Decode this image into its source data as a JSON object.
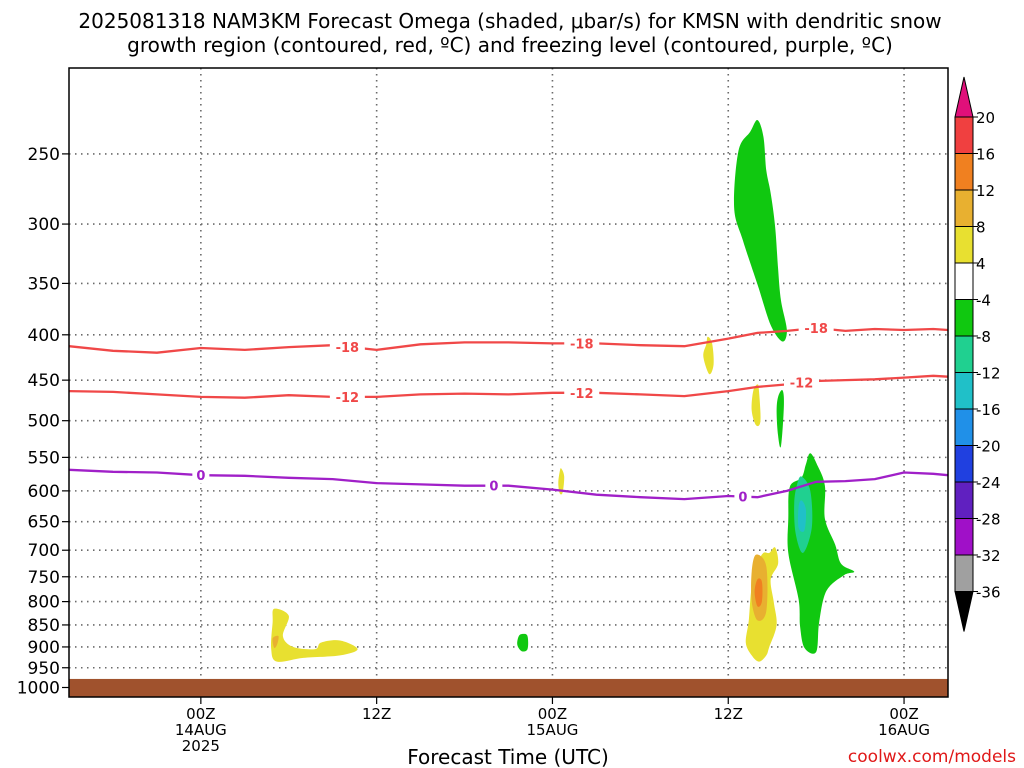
{
  "title": {
    "line1": "2025081318 NAM3KM Forecast Omega (shaded, μbar/s) for KMSN with dendritic snow",
    "line2": "growth region (contoured, red, ºC) and freezing level (contoured, purple, ºC)"
  },
  "credit": "coolwx.com/models",
  "chart_data": {
    "type": "heatmap",
    "title": "2025081318 NAM3KM Forecast Omega (shaded, μbar/s) for KMSN with dendritic snow growth region (contoured, red, ºC) and freezing level (contoured, purple, ºC)",
    "xlabel": "Forecast Time (UTC)",
    "ylabel": "",
    "x_range_hours": [
      -9,
      51
    ],
    "y_range_hPa": [
      1025,
      200
    ],
    "y_scale": "log-pressure",
    "grid": true,
    "x_ticks": [
      {
        "hour": 0,
        "line1": "00Z",
        "line2": "14AUG",
        "line3": "2025"
      },
      {
        "hour": 12,
        "line1": "12Z",
        "line2": "",
        "line3": ""
      },
      {
        "hour": 24,
        "line1": "00Z",
        "line2": "15AUG",
        "line3": ""
      },
      {
        "hour": 36,
        "line1": "12Z",
        "line2": "",
        "line3": ""
      },
      {
        "hour": 48,
        "line1": "00Z",
        "line2": "16AUG",
        "line3": ""
      }
    ],
    "y_ticks": [
      250,
      300,
      350,
      400,
      450,
      500,
      550,
      600,
      650,
      700,
      750,
      800,
      850,
      900,
      950,
      1000
    ],
    "surface_pressure_hPa": 978,
    "contours": [
      {
        "label": "-18",
        "color": "#f04848",
        "points": [
          [
            -9,
            412
          ],
          [
            -6,
            417
          ],
          [
            -3,
            419
          ],
          [
            0,
            414
          ],
          [
            3,
            416
          ],
          [
            6,
            413
          ],
          [
            9,
            411
          ],
          [
            12,
            416
          ],
          [
            15,
            410
          ],
          [
            18,
            408
          ],
          [
            21,
            408
          ],
          [
            24,
            409
          ],
          [
            27,
            409
          ],
          [
            30,
            411
          ],
          [
            33,
            412
          ],
          [
            36,
            404
          ],
          [
            38,
            398
          ],
          [
            40,
            396
          ],
          [
            42,
            393
          ],
          [
            44,
            396
          ],
          [
            46,
            394
          ],
          [
            48,
            395
          ],
          [
            50,
            394
          ],
          [
            51,
            395
          ]
        ],
        "labels_at_hours": [
          10,
          26,
          42
        ]
      },
      {
        "label": "-12",
        "color": "#f04848",
        "points": [
          [
            -9,
            463
          ],
          [
            -6,
            464
          ],
          [
            -3,
            467
          ],
          [
            0,
            470
          ],
          [
            3,
            471
          ],
          [
            6,
            468
          ],
          [
            9,
            470
          ],
          [
            12,
            470
          ],
          [
            15,
            467
          ],
          [
            18,
            466
          ],
          [
            21,
            467
          ],
          [
            24,
            465
          ],
          [
            27,
            465
          ],
          [
            30,
            467
          ],
          [
            33,
            469
          ],
          [
            36,
            463
          ],
          [
            38,
            458
          ],
          [
            40,
            455
          ],
          [
            42,
            451
          ],
          [
            44,
            450
          ],
          [
            46,
            449
          ],
          [
            48,
            447
          ],
          [
            50,
            445
          ],
          [
            51,
            446
          ]
        ],
        "labels_at_hours": [
          10,
          26,
          41
        ]
      },
      {
        "label": "0",
        "color": "#a020c8",
        "points": [
          [
            -9,
            568
          ],
          [
            -6,
            571
          ],
          [
            -3,
            572
          ],
          [
            0,
            576
          ],
          [
            3,
            577
          ],
          [
            6,
            580
          ],
          [
            9,
            582
          ],
          [
            12,
            588
          ],
          [
            15,
            590
          ],
          [
            18,
            592
          ],
          [
            21,
            592
          ],
          [
            24,
            598
          ],
          [
            27,
            606
          ],
          [
            30,
            610
          ],
          [
            33,
            613
          ],
          [
            36,
            608
          ],
          [
            38,
            610
          ],
          [
            40,
            600
          ],
          [
            42,
            586
          ],
          [
            44,
            585
          ],
          [
            46,
            582
          ],
          [
            48,
            572
          ],
          [
            50,
            574
          ],
          [
            51,
            576
          ]
        ],
        "labels_at_hours": [
          0,
          20,
          37
        ]
      }
    ],
    "shaded_regions": [
      {
        "omega": 8,
        "color": "#e8e030",
        "outline": [
          [
            5,
            815
          ],
          [
            6,
            830
          ],
          [
            5.6,
            875
          ],
          [
            6.3,
            900
          ],
          [
            7.8,
            905
          ],
          [
            8.2,
            890
          ],
          [
            9.5,
            885
          ],
          [
            10.7,
            905
          ],
          [
            9.5,
            920
          ],
          [
            7,
            926
          ],
          [
            5.2,
            935
          ],
          [
            4.8,
            905
          ],
          [
            4.9,
            845
          ]
        ]
      },
      {
        "omega": 12,
        "color": "#e8b030",
        "outline": [
          [
            4.9,
            880
          ],
          [
            5.3,
            875
          ],
          [
            5.2,
            895
          ],
          [
            5.0,
            902
          ]
        ]
      },
      {
        "omega": -8,
        "color": "#10c810",
        "outline": [
          [
            22,
            870
          ],
          [
            22.3,
            875
          ],
          [
            22.3,
            905
          ],
          [
            21.9,
            910
          ],
          [
            21.6,
            895
          ],
          [
            21.7,
            875
          ]
        ]
      },
      {
        "omega": 4,
        "color": "#e8e030",
        "outline": [
          [
            24.6,
            566
          ],
          [
            24.8,
            578
          ],
          [
            24.7,
            602
          ],
          [
            24.5,
            604
          ],
          [
            24.4,
            588
          ],
          [
            24.5,
            570
          ]
        ]
      },
      {
        "omega": 4,
        "color": "#e8e030",
        "outline": [
          [
            34.6,
            402
          ],
          [
            34.9,
            409
          ],
          [
            35.0,
            432
          ],
          [
            34.7,
            443
          ],
          [
            34.3,
            423
          ],
          [
            34.5,
            410
          ]
        ]
      },
      {
        "omega": 4,
        "color": "#e8e030",
        "outline": [
          [
            38,
            455
          ],
          [
            38.1,
            463
          ],
          [
            38.2,
            500
          ],
          [
            37.9,
            506
          ],
          [
            37.6,
            487
          ],
          [
            37.7,
            463
          ]
        ]
      },
      {
        "omega": -8,
        "color": "#10c810",
        "outline": [
          [
            39.7,
            462
          ],
          [
            39.8,
            480
          ],
          [
            39.6,
            534
          ],
          [
            39.4,
            520
          ],
          [
            39.3,
            488
          ],
          [
            39.4,
            470
          ]
        ]
      },
      {
        "omega": -8,
        "color": "#10c810",
        "outline": [
          [
            38.0,
            229
          ],
          [
            38.4,
            239
          ],
          [
            38.6,
            261
          ],
          [
            38.9,
            277
          ],
          [
            39.2,
            302
          ],
          [
            39.4,
            337
          ],
          [
            39.6,
            366
          ],
          [
            40.0,
            395
          ],
          [
            39.7,
            407
          ],
          [
            38.9,
            390
          ],
          [
            38.0,
            351
          ],
          [
            37.0,
            313
          ],
          [
            36.4,
            287
          ],
          [
            36.7,
            248
          ],
          [
            37.5,
            236
          ]
        ]
      },
      {
        "omega": 4,
        "color": "#e8e030",
        "outline": [
          [
            38.8,
            705
          ],
          [
            39.2,
            695
          ],
          [
            39.4,
            725
          ],
          [
            38.9,
            755
          ],
          [
            39.1,
            800
          ],
          [
            39.3,
            850
          ],
          [
            38.8,
            900
          ],
          [
            38.6,
            920
          ],
          [
            38.1,
            935
          ],
          [
            37.6,
            920
          ],
          [
            37.2,
            890
          ],
          [
            37.4,
            840
          ],
          [
            37.6,
            770
          ],
          [
            38.0,
            725
          ],
          [
            38.4,
            705
          ]
        ]
      },
      {
        "omega": 8,
        "color": "#e8b030",
        "outline": [
          [
            37.9,
            708
          ],
          [
            38.6,
            730
          ],
          [
            38.6,
            820
          ],
          [
            38.0,
            840
          ],
          [
            37.6,
            800
          ],
          [
            37.6,
            740
          ]
        ]
      },
      {
        "omega": 16,
        "color": "#f08020",
        "outline": [
          [
            38.0,
            755
          ],
          [
            38.3,
            760
          ],
          [
            38.3,
            800
          ],
          [
            38.0,
            810
          ],
          [
            37.8,
            780
          ]
        ]
      },
      {
        "omega": -8,
        "color": "#10c810",
        "outline": [
          [
            41.6,
            544
          ],
          [
            42.1,
            562
          ],
          [
            42.6,
            592
          ],
          [
            42.6,
            645
          ],
          [
            43.3,
            690
          ],
          [
            43.7,
            725
          ],
          [
            44.6,
            740
          ],
          [
            43.9,
            747
          ],
          [
            42.7,
            778
          ],
          [
            42.2,
            845
          ],
          [
            42.0,
            912
          ],
          [
            41.2,
            902
          ],
          [
            40.9,
            852
          ],
          [
            40.8,
            795
          ],
          [
            40.1,
            705
          ],
          [
            40.1,
            645
          ],
          [
            40.2,
            594
          ],
          [
            41.0,
            580
          ],
          [
            41.3,
            560
          ]
        ]
      },
      {
        "omega": -12,
        "color": "#20d090",
        "outline": [
          [
            41.0,
            578
          ],
          [
            41.6,
            600
          ],
          [
            41.7,
            660
          ],
          [
            41.1,
            705
          ],
          [
            40.6,
            670
          ],
          [
            40.5,
            620
          ],
          [
            40.7,
            590
          ]
        ]
      },
      {
        "omega": -16,
        "color": "#20c0c8",
        "outline": [
          [
            41.0,
            615
          ],
          [
            41.3,
            630
          ],
          [
            41.2,
            665
          ],
          [
            40.8,
            660
          ],
          [
            40.8,
            625
          ]
        ]
      }
    ]
  },
  "colorbar": {
    "levels": [
      "20",
      "16",
      "12",
      "8",
      "4",
      "-4",
      "-8",
      "-12",
      "-16",
      "-20",
      "-24",
      "-28",
      "-32",
      "-36"
    ],
    "colors": [
      "#e0107a",
      "#f04040",
      "#f08020",
      "#e8b030",
      "#e8e030",
      "#ffffff",
      "#10c810",
      "#20d090",
      "#20c0c8",
      "#2090e8",
      "#2040e0",
      "#6020c0",
      "#a010c8",
      "#a0a0a0",
      "#000000"
    ]
  },
  "colors": {
    "ground": "#a0522d",
    "grid": "#6a6a6a"
  }
}
